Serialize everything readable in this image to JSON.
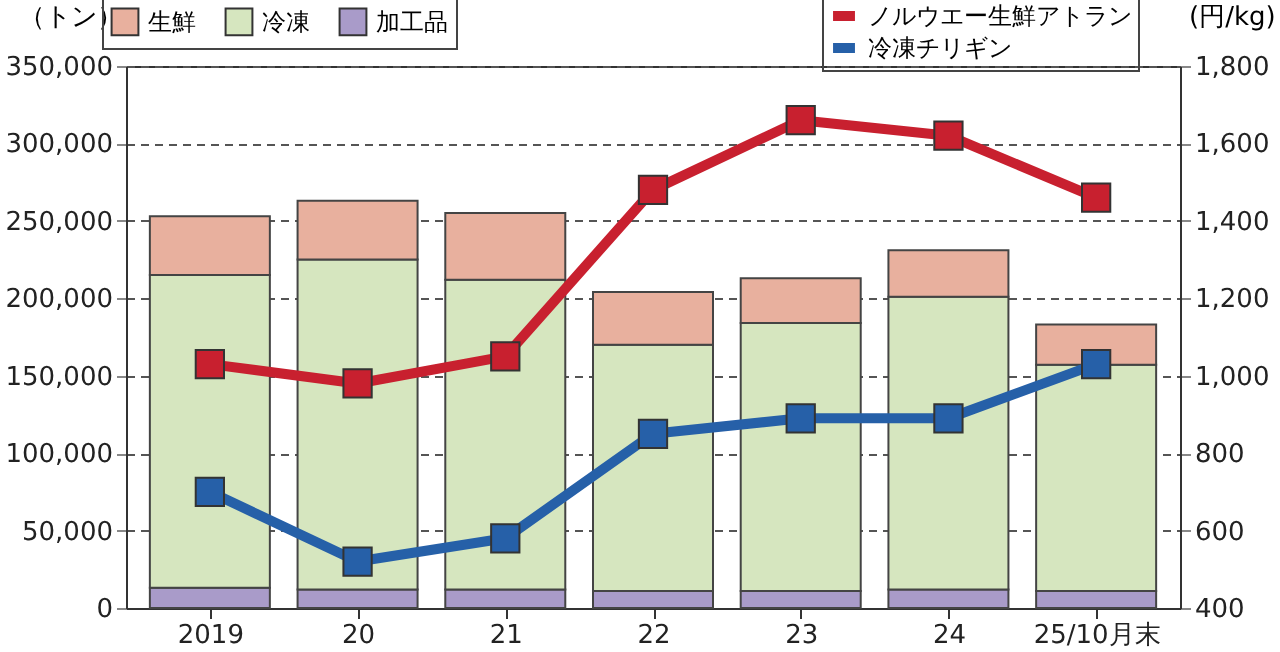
{
  "chart_data": {
    "type": "bar",
    "stacked": true,
    "categories": [
      "2019",
      "20",
      "21",
      "22",
      "23",
      "24",
      "25/10月末"
    ],
    "ylabel": "（トン）",
    "y2label": "(円/kg)",
    "ylim": [
      0,
      350000
    ],
    "yticks": [
      {
        "value": 0,
        "label": "0"
      },
      {
        "value": 50000,
        "label": "50,000"
      },
      {
        "value": 100000,
        "label": "100,000"
      },
      {
        "value": 150000,
        "label": "150,000"
      },
      {
        "value": 200000,
        "label": "200,000"
      },
      {
        "value": 250000,
        "label": "250,000"
      },
      {
        "value": 300000,
        "label": "300,000"
      },
      {
        "value": 350000,
        "label": "350,000"
      }
    ],
    "y2lim": [
      400,
      1800
    ],
    "y2ticks": [
      400,
      600,
      800,
      {
        "value": 1000,
        "label": "1,000"
      },
      {
        "value": 1200,
        "label": "1,200"
      },
      {
        "value": 1400,
        "label": "1,400"
      },
      {
        "value": 1600,
        "label": "1,600"
      },
      {
        "value": 1800,
        "label": "1,800"
      }
    ],
    "grid": "y",
    "legend": "top",
    "series": [
      {
        "name": "加工品",
        "color": "#a99bc9",
        "values": [
          13000,
          12000,
          12000,
          11000,
          11000,
          12000,
          11000
        ]
      },
      {
        "name": "冷凍",
        "color": "#d6e6bf",
        "values": [
          202000,
          213000,
          200000,
          159000,
          173000,
          189000,
          146000
        ]
      },
      {
        "name": "生鮮",
        "color": "#e8b09e",
        "values": [
          38000,
          38000,
          43000,
          34000,
          29000,
          30000,
          26000
        ]
      },
      {
        "name": "ノルウエー生鮮アトラン",
        "type": "line",
        "axis": "y2",
        "marker": "square",
        "line_style": "solid",
        "color": "#c8202f",
        "values": [
          1030,
          980,
          1050,
          1480,
          1660,
          1620,
          1460
        ]
      },
      {
        "name": "冷凍チリギン",
        "type": "line",
        "axis": "y2",
        "marker": "square",
        "line_style": "solid",
        "color": "#2660a8",
        "values": [
          700,
          520,
          580,
          850,
          890,
          890,
          1030
        ]
      }
    ]
  }
}
